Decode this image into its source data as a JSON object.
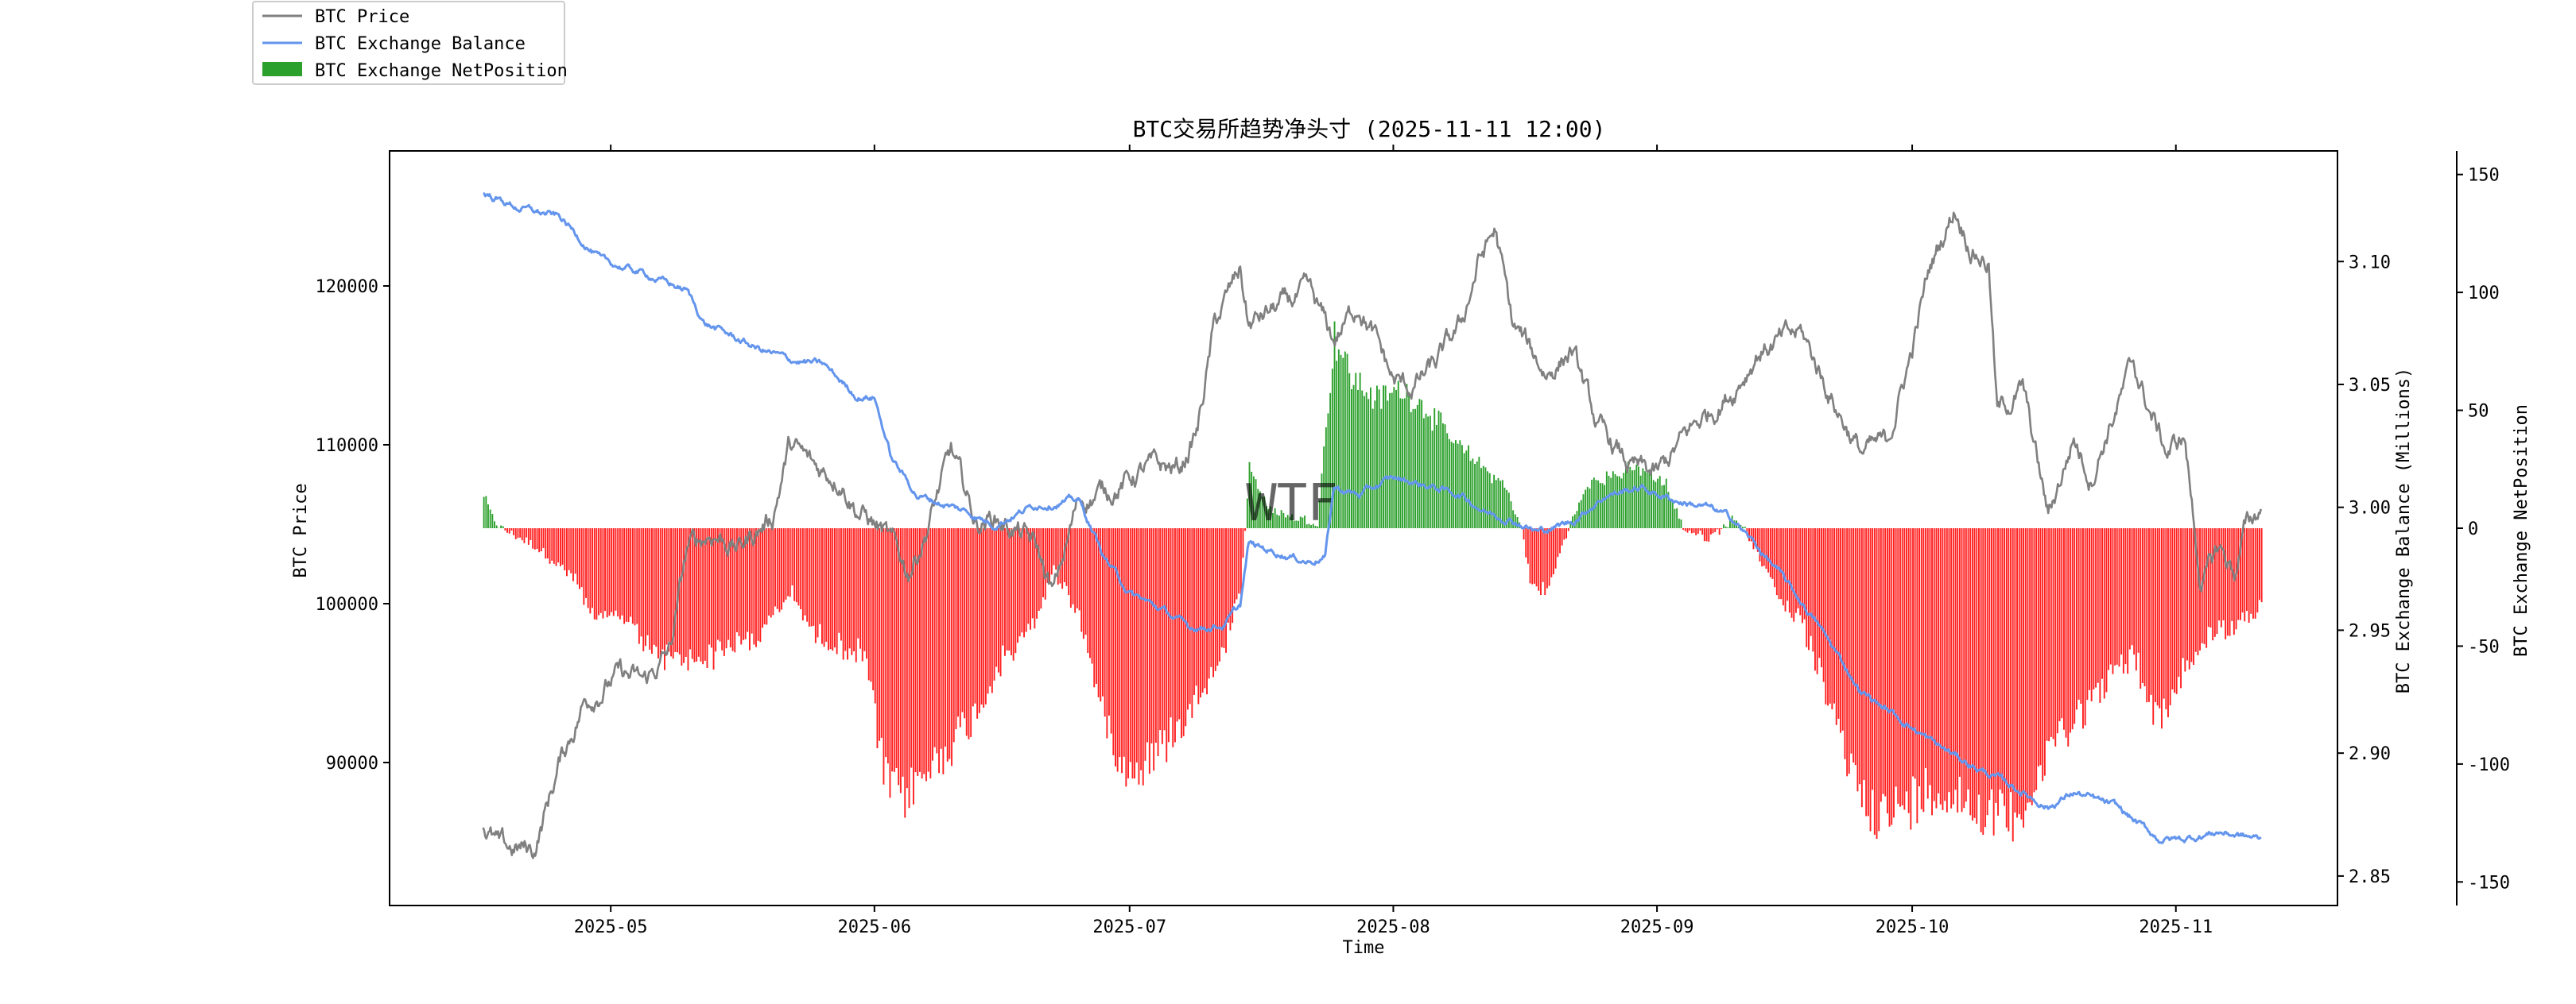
{
  "chart_data": {
    "type": "line",
    "title": "BTC交易所趋势净头寸 (2025-11-11 12:00)",
    "xlabel": "Time",
    "ylabel_left": "BTC Price",
    "ylabel_right1": "BTC Exchange Balance (Millions)",
    "ylabel_right2": "BTC Exchange NetPosition",
    "watermark": "WTF",
    "x_ticks": [
      "2025-05",
      "2025-06",
      "2025-07",
      "2025-08",
      "2025-09",
      "2025-10",
      "2025-11"
    ],
    "left_axis": {
      "ylim": [
        81000,
        128500
      ],
      "ticks": [
        "90000",
        "100000",
        "110000",
        "120000"
      ],
      "tick_values": [
        90000,
        100000,
        110000,
        120000
      ]
    },
    "right1_axis": {
      "ylim": [
        2.838,
        3.145
      ],
      "ticks": [
        "2.85",
        "2.90",
        "2.95",
        "3.00",
        "3.05",
        "3.10"
      ],
      "tick_values": [
        2.85,
        2.9,
        2.95,
        3.0,
        3.05,
        3.1
      ]
    },
    "right2_axis": {
      "ylim": [
        -160,
        160
      ],
      "ticks": [
        "-150",
        "-100",
        "-50",
        "0",
        "50",
        "100",
        "150"
      ],
      "tick_values": [
        -150,
        -100,
        -50,
        0,
        50,
        100,
        150
      ]
    },
    "legend_position": "top-left (outside plot)",
    "grid": false,
    "series": [
      {
        "name": "BTC Price",
        "color": "#808080",
        "axis": "left",
        "points": [
          [
            "2025-04-16",
            86000
          ],
          [
            "2025-04-18",
            84500
          ],
          [
            "2025-04-22",
            84500
          ],
          [
            "2025-04-25",
            90000
          ],
          [
            "2025-04-28",
            94000
          ],
          [
            "2025-05-02",
            95500
          ],
          [
            "2025-05-05",
            95000
          ],
          [
            "2025-05-08",
            97000
          ],
          [
            "2025-05-10",
            103500
          ],
          [
            "2025-05-13",
            104500
          ],
          [
            "2025-05-16",
            103500
          ],
          [
            "2025-05-20",
            105500
          ],
          [
            "2025-05-22",
            110000
          ],
          [
            "2025-05-25",
            108500
          ],
          [
            "2025-05-28",
            108000
          ],
          [
            "2025-05-30",
            106000
          ],
          [
            "2025-06-02",
            104500
          ],
          [
            "2025-06-05",
            102000
          ],
          [
            "2025-06-07",
            104500
          ],
          [
            "2025-06-10",
            109500
          ],
          [
            "2025-06-13",
            105000
          ],
          [
            "2025-06-15",
            105500
          ],
          [
            "2025-06-18",
            104500
          ],
          [
            "2025-06-20",
            103500
          ],
          [
            "2025-06-22",
            100500
          ],
          [
            "2025-06-25",
            106500
          ],
          [
            "2025-06-30",
            107500
          ],
          [
            "2025-07-03",
            108500
          ],
          [
            "2025-07-07",
            108500
          ],
          [
            "2025-07-09",
            111000
          ],
          [
            "2025-07-11",
            117500
          ],
          [
            "2025-07-14",
            121000
          ],
          [
            "2025-07-15",
            117500
          ],
          [
            "2025-07-18",
            118500
          ],
          [
            "2025-07-22",
            119500
          ],
          [
            "2025-07-25",
            116500
          ],
          [
            "2025-07-28",
            119000
          ],
          [
            "2025-08-01",
            114000
          ],
          [
            "2025-08-03",
            113500
          ],
          [
            "2025-08-06",
            115000
          ],
          [
            "2025-08-09",
            117500
          ],
          [
            "2025-08-11",
            121500
          ],
          [
            "2025-08-13",
            123500
          ],
          [
            "2025-08-15",
            117500
          ],
          [
            "2025-08-19",
            114500
          ],
          [
            "2025-08-22",
            116000
          ],
          [
            "2025-08-25",
            111000
          ],
          [
            "2025-08-29",
            108500
          ],
          [
            "2025-09-01",
            108000
          ],
          [
            "2025-09-05",
            111000
          ],
          [
            "2025-09-10",
            113500
          ],
          [
            "2025-09-13",
            116000
          ],
          [
            "2025-09-18",
            117000
          ],
          [
            "2025-09-22",
            112500
          ],
          [
            "2025-09-25",
            109500
          ],
          [
            "2025-09-28",
            110000
          ],
          [
            "2025-10-01",
            116000
          ],
          [
            "2025-10-03",
            121000
          ],
          [
            "2025-10-06",
            125000
          ],
          [
            "2025-10-08",
            122500
          ],
          [
            "2025-10-10",
            121500
          ],
          [
            "2025-10-11",
            112000
          ],
          [
            "2025-10-14",
            113500
          ],
          [
            "2025-10-17",
            105500
          ],
          [
            "2025-10-20",
            110500
          ],
          [
            "2025-10-22",
            108000
          ],
          [
            "2025-10-24",
            111000
          ],
          [
            "2025-10-27",
            115000
          ],
          [
            "2025-10-29",
            112000
          ],
          [
            "2025-10-31",
            109500
          ],
          [
            "2025-11-02",
            110500
          ],
          [
            "2025-11-04",
            101000
          ],
          [
            "2025-11-06",
            103500
          ],
          [
            "2025-11-08",
            102000
          ],
          [
            "2025-11-09",
            104500
          ],
          [
            "2025-11-11",
            106000
          ]
        ]
      },
      {
        "name": "BTC Exchange Balance",
        "color": "#6495ed",
        "axis": "right1",
        "points": [
          [
            "2025-04-16",
            3.128
          ],
          [
            "2025-04-20",
            3.122
          ],
          [
            "2025-04-25",
            3.118
          ],
          [
            "2025-04-30",
            3.1
          ],
          [
            "2025-05-05",
            3.095
          ],
          [
            "2025-05-10",
            3.088
          ],
          [
            "2025-05-12",
            3.075
          ],
          [
            "2025-05-18",
            3.065
          ],
          [
            "2025-05-22",
            3.06
          ],
          [
            "2025-05-26",
            3.058
          ],
          [
            "2025-05-30",
            3.045
          ],
          [
            "2025-06-01",
            3.045
          ],
          [
            "2025-06-03",
            3.02
          ],
          [
            "2025-06-06",
            3.005
          ],
          [
            "2025-06-12",
            2.998
          ],
          [
            "2025-06-15",
            2.993
          ],
          [
            "2025-06-20",
            3.001
          ],
          [
            "2025-06-25",
            3.003
          ],
          [
            "2025-06-28",
            2.98
          ],
          [
            "2025-07-01",
            2.965
          ],
          [
            "2025-07-05",
            2.958
          ],
          [
            "2025-07-08",
            2.951
          ],
          [
            "2025-07-12",
            2.952
          ],
          [
            "2025-07-14",
            2.96
          ],
          [
            "2025-07-15",
            2.985
          ],
          [
            "2025-07-18",
            2.982
          ],
          [
            "2025-07-22",
            2.978
          ],
          [
            "2025-07-24",
            2.98
          ],
          [
            "2025-07-25",
            3.008
          ],
          [
            "2025-07-28",
            3.005
          ],
          [
            "2025-08-01",
            3.012
          ],
          [
            "2025-08-06",
            3.008
          ],
          [
            "2025-08-09",
            3.005
          ],
          [
            "2025-08-12",
            2.998
          ],
          [
            "2025-08-15",
            2.995
          ],
          [
            "2025-08-18",
            2.99
          ],
          [
            "2025-08-22",
            2.994
          ],
          [
            "2025-08-26",
            3.005
          ],
          [
            "2025-08-30",
            3.008
          ],
          [
            "2025-09-03",
            3.003
          ],
          [
            "2025-09-07",
            3.0
          ],
          [
            "2025-09-10",
            2.995
          ],
          [
            "2025-09-15",
            2.975
          ],
          [
            "2025-09-20",
            2.952
          ],
          [
            "2025-09-25",
            2.925
          ],
          [
            "2025-09-30",
            2.913
          ],
          [
            "2025-10-04",
            2.903
          ],
          [
            "2025-10-08",
            2.895
          ],
          [
            "2025-10-12",
            2.888
          ],
          [
            "2025-10-15",
            2.882
          ],
          [
            "2025-10-17",
            2.878
          ],
          [
            "2025-10-20",
            2.884
          ],
          [
            "2025-10-25",
            2.878
          ],
          [
            "2025-10-30",
            2.865
          ],
          [
            "2025-11-02",
            2.865
          ],
          [
            "2025-11-06",
            2.868
          ],
          [
            "2025-11-11",
            2.865
          ]
        ]
      },
      {
        "name": "BTC Exchange NetPosition",
        "type": "bar",
        "axis": "right2",
        "color_positive": "#2ca02c",
        "color_negative": "#ff2020",
        "points": [
          [
            "2025-04-16",
            15
          ],
          [
            "2025-04-17",
            5
          ],
          [
            "2025-04-18",
            0
          ],
          [
            "2025-04-22",
            -8
          ],
          [
            "2025-04-27",
            -25
          ],
          [
            "2025-04-29",
            -45
          ],
          [
            "2025-05-01",
            -40
          ],
          [
            "2025-05-03",
            -42
          ],
          [
            "2025-05-05",
            -55
          ],
          [
            "2025-05-08",
            -62
          ],
          [
            "2025-05-12",
            -60
          ],
          [
            "2025-05-15",
            -55
          ],
          [
            "2025-05-18",
            -52
          ],
          [
            "2025-05-22",
            -30
          ],
          [
            "2025-05-25",
            -50
          ],
          [
            "2025-05-28",
            -55
          ],
          [
            "2025-05-31",
            -60
          ],
          [
            "2025-06-02",
            -115
          ],
          [
            "2025-06-04",
            -125
          ],
          [
            "2025-06-07",
            -115
          ],
          [
            "2025-06-10",
            -100
          ],
          [
            "2025-06-13",
            -85
          ],
          [
            "2025-06-16",
            -60
          ],
          [
            "2025-06-19",
            -50
          ],
          [
            "2025-06-22",
            -20
          ],
          [
            "2025-06-25",
            -40
          ],
          [
            "2025-06-28",
            -90
          ],
          [
            "2025-07-01",
            -115
          ],
          [
            "2025-07-04",
            -105
          ],
          [
            "2025-07-07",
            -90
          ],
          [
            "2025-07-10",
            -70
          ],
          [
            "2025-07-12",
            -55
          ],
          [
            "2025-07-14",
            -30
          ],
          [
            "2025-07-15",
            30
          ],
          [
            "2025-07-17",
            10
          ],
          [
            "2025-07-20",
            5
          ],
          [
            "2025-07-23",
            3
          ],
          [
            "2025-07-25",
            90
          ],
          [
            "2025-07-27",
            70
          ],
          [
            "2025-07-30",
            60
          ],
          [
            "2025-08-02",
            65
          ],
          [
            "2025-08-05",
            55
          ],
          [
            "2025-08-08",
            40
          ],
          [
            "2025-08-11",
            30
          ],
          [
            "2025-08-14",
            20
          ],
          [
            "2025-08-16",
            0
          ],
          [
            "2025-08-17",
            -25
          ],
          [
            "2025-08-19",
            -30
          ],
          [
            "2025-08-21",
            -5
          ],
          [
            "2025-08-24",
            22
          ],
          [
            "2025-08-27",
            25
          ],
          [
            "2025-08-30",
            28
          ],
          [
            "2025-09-02",
            20
          ],
          [
            "2025-09-04",
            0
          ],
          [
            "2025-09-07",
            -5
          ],
          [
            "2025-09-10",
            5
          ],
          [
            "2025-09-12",
            -5
          ],
          [
            "2025-09-15",
            -30
          ],
          [
            "2025-09-18",
            -45
          ],
          [
            "2025-09-21",
            -80
          ],
          [
            "2025-09-24",
            -115
          ],
          [
            "2025-09-27",
            -135
          ],
          [
            "2025-09-30",
            -130
          ],
          [
            "2025-10-03",
            -120
          ],
          [
            "2025-10-06",
            -125
          ],
          [
            "2025-10-09",
            -130
          ],
          [
            "2025-10-12",
            -135
          ],
          [
            "2025-10-15",
            -125
          ],
          [
            "2025-10-18",
            -95
          ],
          [
            "2025-10-21",
            -85
          ],
          [
            "2025-10-24",
            -70
          ],
          [
            "2025-10-27",
            -60
          ],
          [
            "2025-10-30",
            -90
          ],
          [
            "2025-11-02",
            -65
          ],
          [
            "2025-11-05",
            -50
          ],
          [
            "2025-11-08",
            -45
          ],
          [
            "2025-11-11",
            -38
          ]
        ]
      }
    ]
  }
}
